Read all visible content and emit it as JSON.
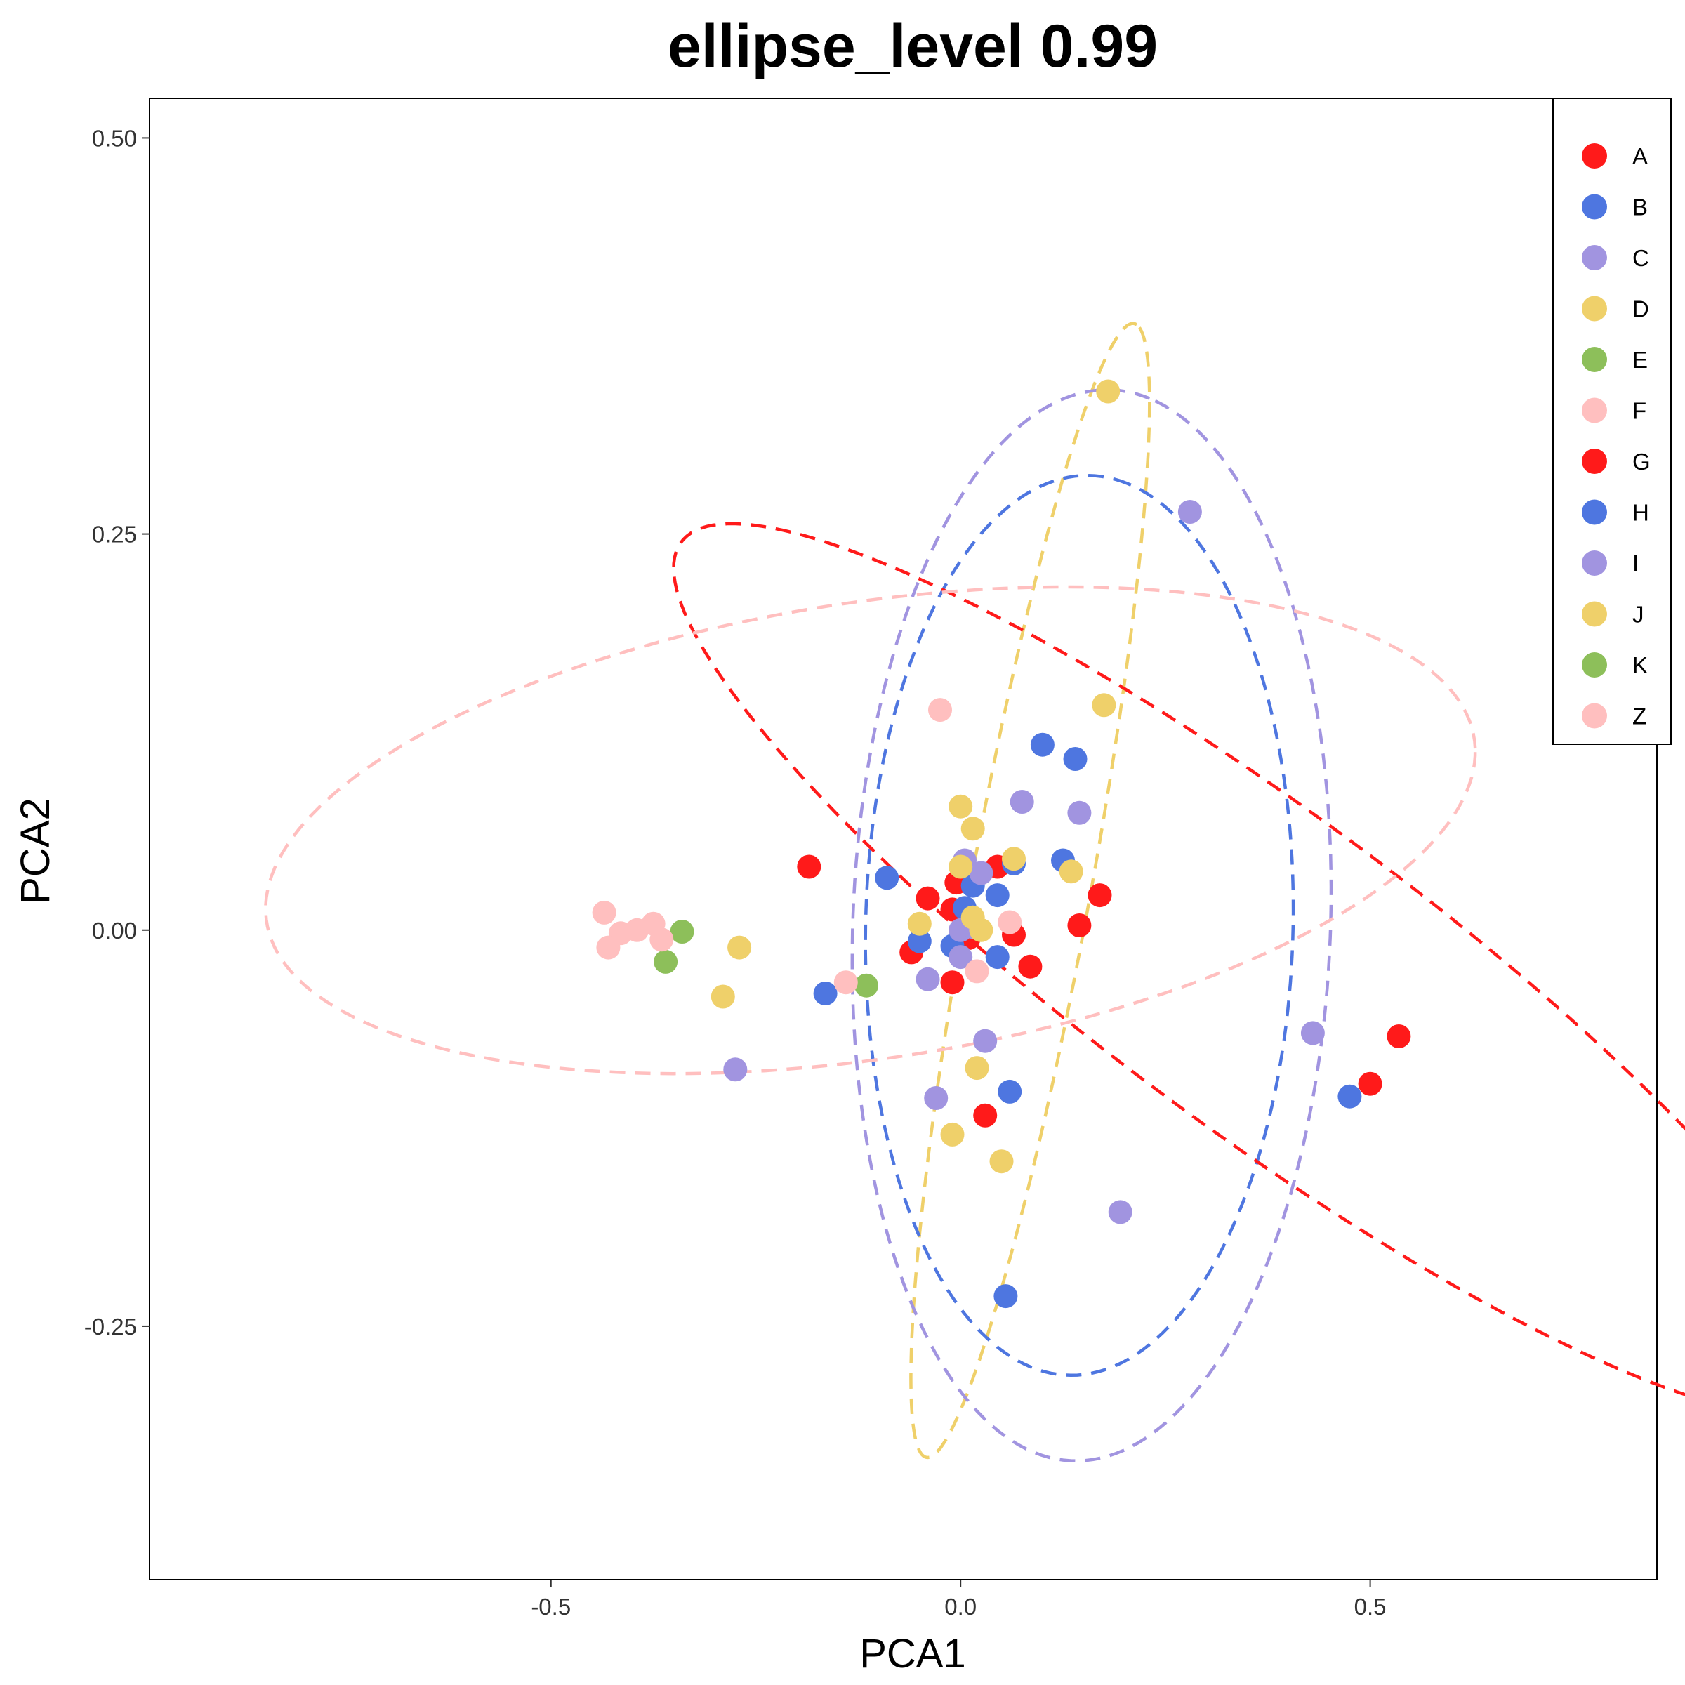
{
  "chart_data": {
    "type": "scatter",
    "title": "ellipse_level 0.99",
    "xlabel": "PCA1",
    "ylabel": "PCA2",
    "xlim": [
      -0.99,
      0.85
    ],
    "ylim": [
      -0.41,
      0.525
    ],
    "x_ticks": [
      -0.5,
      0.0,
      0.5
    ],
    "x_tick_labels": [
      "-0.5",
      "0.0",
      "0.5"
    ],
    "y_ticks": [
      -0.25,
      0.0,
      0.25,
      0.5
    ],
    "y_tick_labels": [
      "-0.25",
      "0.00",
      "0.25",
      "0.50"
    ],
    "grid": false,
    "legend_position": "top-right",
    "series": [
      {
        "name": "A",
        "color": "#FF1A1A",
        "points": [
          [
            -0.185,
            0.04
          ],
          [
            -0.04,
            0.02
          ],
          [
            -0.005,
            0.03
          ],
          [
            0.045,
            0.04
          ],
          [
            0.065,
            -0.003
          ],
          [
            -0.06,
            -0.014
          ],
          [
            -0.01,
            -0.033
          ],
          [
            0.085,
            -0.023
          ],
          [
            0.17,
            0.022
          ],
          [
            0.145,
            0.003
          ],
          [
            0.03,
            -0.117
          ],
          [
            0.5,
            -0.097
          ],
          [
            0.535,
            -0.067
          ],
          [
            -0.01,
            0.013
          ],
          [
            0.01,
            -0.005
          ]
        ]
      },
      {
        "name": "B",
        "color": "#4E76E0",
        "points": [
          [
            0.1,
            0.117
          ],
          [
            0.14,
            0.108
          ],
          [
            -0.09,
            0.033
          ],
          [
            0.065,
            0.042
          ],
          [
            0.125,
            0.044
          ],
          [
            0.045,
            0.022
          ],
          [
            0.015,
            0.028
          ],
          [
            0.005,
            0.014
          ],
          [
            -0.05,
            -0.007
          ],
          [
            -0.01,
            -0.01
          ],
          [
            0.045,
            -0.017
          ],
          [
            -0.165,
            -0.04
          ],
          [
            0.06,
            -0.102
          ],
          [
            0.475,
            -0.105
          ],
          [
            0.055,
            -0.231
          ]
        ]
      },
      {
        "name": "C",
        "color": "#A194E0",
        "points": [
          [
            0.28,
            0.264
          ],
          [
            0.075,
            0.081
          ],
          [
            0.145,
            0.074
          ],
          [
            0.005,
            0.044
          ],
          [
            0.025,
            0.036
          ],
          [
            0.0,
            0.0
          ],
          [
            0.0,
            -0.017
          ],
          [
            -0.04,
            -0.031
          ],
          [
            0.03,
            -0.07
          ],
          [
            -0.03,
            -0.106
          ],
          [
            -0.275,
            -0.088
          ],
          [
            0.43,
            -0.065
          ],
          [
            0.195,
            -0.178
          ],
          [
            0.015,
            0.002
          ]
        ]
      },
      {
        "name": "D",
        "color": "#EFD06A",
        "points": [
          [
            0.18,
            0.34
          ],
          [
            0.175,
            0.142
          ],
          [
            0.0,
            0.078
          ],
          [
            0.015,
            0.064
          ],
          [
            0.0,
            0.04
          ],
          [
            0.065,
            0.045
          ],
          [
            0.135,
            0.037
          ],
          [
            0.025,
            0.0
          ],
          [
            -0.05,
            0.004
          ],
          [
            0.015,
            0.008
          ],
          [
            -0.27,
            -0.011
          ],
          [
            -0.29,
            -0.042
          ],
          [
            0.02,
            -0.087
          ],
          [
            -0.01,
            -0.129
          ],
          [
            0.05,
            -0.146
          ]
        ]
      },
      {
        "name": "E",
        "color": "#8DBF5A",
        "points": [
          [
            -0.34,
            -0.001
          ],
          [
            -0.36,
            -0.02
          ],
          [
            -0.115,
            -0.035
          ]
        ]
      },
      {
        "name": "F",
        "color": "#FFBFBF",
        "points": [
          [
            -0.025,
            0.139
          ],
          [
            -0.435,
            0.011
          ],
          [
            -0.415,
            -0.002
          ],
          [
            -0.395,
            0.0
          ],
          [
            -0.375,
            0.004
          ],
          [
            -0.365,
            -0.006
          ],
          [
            -0.43,
            -0.011
          ],
          [
            -0.14,
            -0.033
          ],
          [
            0.02,
            -0.026
          ],
          [
            0.06,
            0.005
          ]
        ]
      }
    ],
    "ellipses": [
      {
        "color": "#EFD06A",
        "center": [
          0.085,
          0.025
        ],
        "a": 0.38,
        "b": 0.07,
        "rotation_deg": 70
      },
      {
        "color": "#A194E0",
        "center": [
          0.16,
          0.003
        ],
        "a": 0.34,
        "b": 0.29,
        "rotation_deg": 78
      },
      {
        "color": "#4E76E0",
        "center": [
          0.145,
          0.003
        ],
        "a": 0.285,
        "b": 0.26,
        "rotation_deg": 78
      },
      {
        "color": "#FF1A1A",
        "center": [
          0.365,
          -0.025
        ],
        "a": 0.76,
        "b": 0.115,
        "rotation_deg": -20
      },
      {
        "color": "#FFBFBF",
        "center": [
          -0.11,
          0.063
        ],
        "a": 0.74,
        "b": 0.145,
        "rotation_deg": 4
      }
    ],
    "legend": [
      {
        "label": "A",
        "color": "#FF1A1A"
      },
      {
        "label": "B",
        "color": "#4E76E0"
      },
      {
        "label": "C",
        "color": "#A194E0"
      },
      {
        "label": "D",
        "color": "#EFD06A"
      },
      {
        "label": "E",
        "color": "#8DBF5A"
      },
      {
        "label": "F",
        "color": "#FFBFBF"
      },
      {
        "label": "G",
        "color": "#FF1A1A"
      },
      {
        "label": "H",
        "color": "#4E76E0"
      },
      {
        "label": "I",
        "color": "#A194E0"
      },
      {
        "label": "J",
        "color": "#EFD06A"
      },
      {
        "label": "K",
        "color": "#8DBF5A"
      },
      {
        "label": "Z",
        "color": "#FFBFBF"
      }
    ]
  }
}
